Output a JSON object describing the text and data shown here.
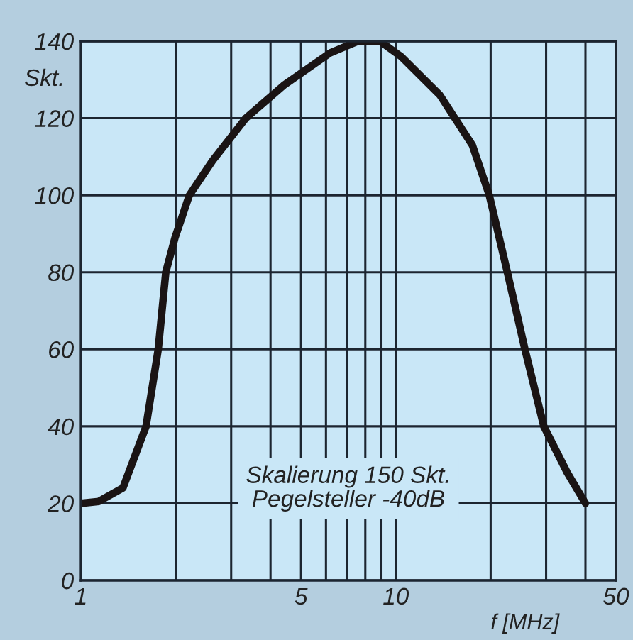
{
  "chart_data": {
    "type": "line",
    "xlabel": "f [MHz]",
    "ylabel": "Skt.",
    "annotations": [
      "Skalierung 150 Skt.\nPegelsteller -40dB"
    ],
    "log": "x",
    "x": [
      1,
      1.14,
      1.36,
      1.61,
      1.76,
      1.86,
      1.99,
      2.21,
      2.62,
      3.34,
      4.4,
      6.2,
      7.6,
      8.9,
      10.4,
      13.8,
      17.5,
      19.8,
      22.6,
      25.7,
      29.5,
      35,
      40
    ],
    "series": [
      {
        "color": "#1a1414",
        "values": [
          20,
          20.5,
          24,
          40,
          60,
          80,
          89,
          100,
          109,
          120,
          128.5,
          137,
          140,
          140,
          136,
          126,
          113,
          100,
          80,
          60,
          40,
          28,
          20
        ]
      }
    ],
    "xlim": [
      1,
      50
    ],
    "ylim": [
      0,
      140
    ],
    "xticks": [
      1,
      {
        "value": 2,
        "label": null
      },
      {
        "value": 3,
        "label": null
      },
      {
        "value": 4,
        "label": null
      },
      5,
      {
        "value": 6,
        "label": null
      },
      {
        "value": 7,
        "label": null
      },
      {
        "value": 8,
        "label": null
      },
      {
        "value": 9,
        "label": null
      },
      10,
      {
        "value": 20,
        "label": null
      },
      {
        "value": 30,
        "label": null
      },
      {
        "value": 40,
        "label": null
      },
      50
    ],
    "yticks": [
      0,
      20,
      40,
      60,
      80,
      100,
      120,
      140
    ],
    "grid": true,
    "legend": false,
    "marker": "none",
    "line_style": "solid"
  }
}
